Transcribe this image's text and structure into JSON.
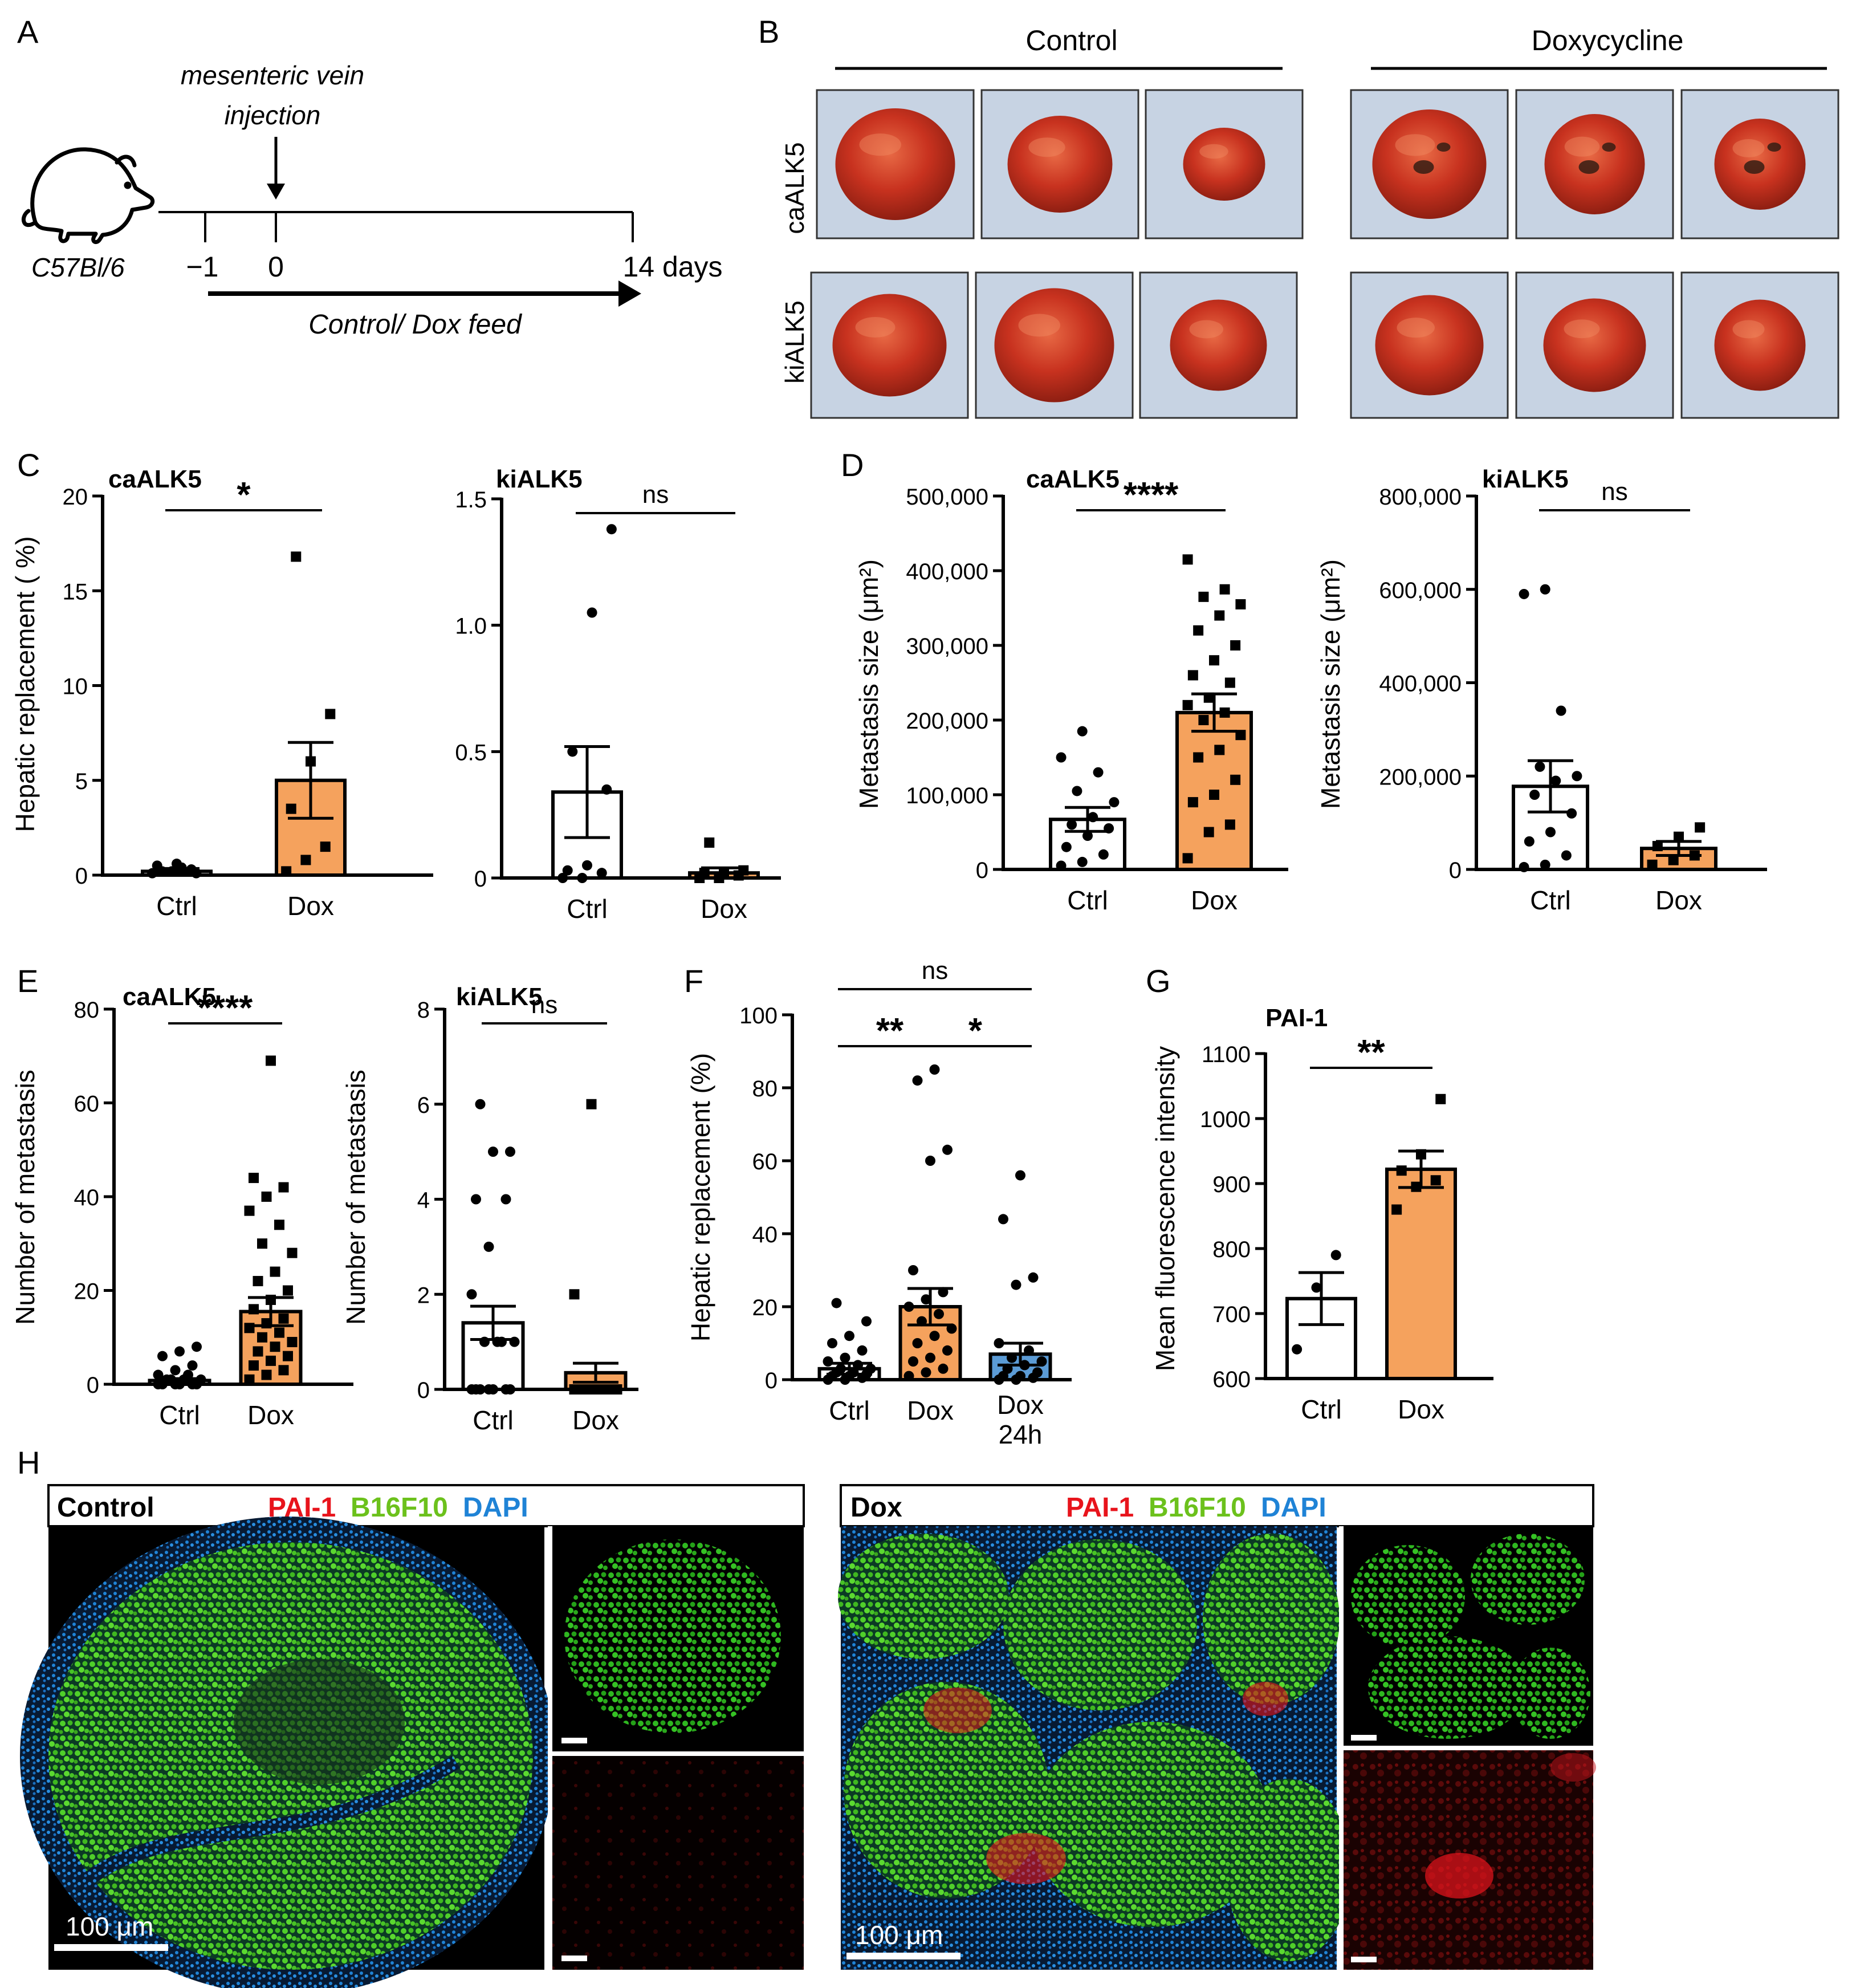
{
  "figure": {
    "panel_letters": [
      "A",
      "B",
      "C",
      "D",
      "E",
      "F",
      "G",
      "H"
    ],
    "colors": {
      "ctrl_bar": "#ffffff",
      "dox_bar": "#f5a25d",
      "dox24_bar": "#5b9bd5",
      "liver": "#c8321f",
      "liver_bg": "#c7d3e3",
      "pai1": "#e8141c",
      "b16f10": "#6cc11c",
      "dapi": "#1f83d6"
    }
  },
  "panel_a": {
    "injection_line1": "mesenteric vein",
    "injection_line2": "injection",
    "mouse_strain": "C57Bl/6",
    "timepoints": [
      "−1",
      "0",
      "14 days"
    ],
    "feed_label": "Control/ Dox feed",
    "icons": [
      "mouse-icon",
      "down-arrow-icon",
      "right-arrow-icon"
    ]
  },
  "panel_b": {
    "group_control": "Control",
    "group_dox": "Doxycycline",
    "row_labels": [
      "caALK5",
      "kiALK5"
    ]
  },
  "panel_h": {
    "control_title": "Control",
    "dox_title": "Dox",
    "stain_pai1": "PAI-1",
    "stain_b16": "B16F10",
    "stain_dapi": "DAPI",
    "scale_label": "100 μm"
  },
  "chart_data": [
    {
      "id": "C-caALK5",
      "panel": "C",
      "type": "bar",
      "title": "caALK5",
      "ylabel": "Hepatic replacement ( %)",
      "xlabel": "",
      "categories": [
        "Ctrl",
        "Dox"
      ],
      "ylim": [
        0,
        20
      ],
      "yticks": [
        "0",
        "5",
        "10",
        "15",
        "20"
      ],
      "means": [
        0.2,
        5.0
      ],
      "sem": [
        0.15,
        2.0
      ],
      "points": [
        [
          0.1,
          0.2,
          0.3,
          0.5,
          0.6,
          0.1,
          0.2,
          0.4
        ],
        [
          0.2,
          0.8,
          1.5,
          3.5,
          6.0,
          8.5,
          16.8
        ]
      ],
      "significance": [
        {
          "from": 0,
          "to": 1,
          "label": "*"
        }
      ]
    },
    {
      "id": "C-kiALK5",
      "panel": "C",
      "type": "bar",
      "title": "kiALK5",
      "ylabel": "",
      "xlabel": "",
      "categories": [
        "Ctrl",
        "Dox"
      ],
      "ylim": [
        0,
        1.5
      ],
      "yticks": [
        "0",
        "0.5",
        "1.0",
        "1.5"
      ],
      "means": [
        0.34,
        0.02
      ],
      "sem": [
        0.18,
        0.02
      ],
      "points": [
        [
          0.0,
          0.0,
          0.02,
          0.03,
          0.05,
          0.35,
          0.5,
          1.05,
          1.38
        ],
        [
          0.0,
          0.0,
          0.01,
          0.02,
          0.02,
          0.03,
          0.14
        ]
      ],
      "significance": [
        {
          "from": 0,
          "to": 1,
          "label": "ns"
        }
      ]
    },
    {
      "id": "D-caALK5",
      "panel": "D",
      "type": "bar",
      "title": "caALK5",
      "ylabel": "Metastasis size (μm²)",
      "xlabel": "",
      "categories": [
        "Ctrl",
        "Dox"
      ],
      "ylim": [
        0,
        500000
      ],
      "yticks": [
        "0",
        "100,000",
        "200,000",
        "300,000",
        "400,000",
        "500,000"
      ],
      "means": [
        67000,
        210000
      ],
      "sem": [
        16000,
        25000
      ],
      "points": [
        [
          5000,
          10000,
          20000,
          30000,
          45000,
          55000,
          60000,
          70000,
          90000,
          105000,
          130000,
          150000,
          185000
        ],
        [
          15000,
          50000,
          60000,
          90000,
          100000,
          120000,
          150000,
          160000,
          180000,
          200000,
          210000,
          220000,
          230000,
          250000,
          260000,
          280000,
          300000,
          320000,
          340000,
          355000,
          365000,
          375000,
          415000
        ]
      ],
      "significance": [
        {
          "from": 0,
          "to": 1,
          "label": "****"
        }
      ]
    },
    {
      "id": "D-kiALK5",
      "panel": "D",
      "type": "bar",
      "title": "kiALK5",
      "ylabel": "Metastasis size (μm²)",
      "xlabel": "",
      "categories": [
        "Ctrl",
        "Dox"
      ],
      "ylim": [
        0,
        800000
      ],
      "yticks": [
        "0",
        "200,000",
        "400,000",
        "600,000",
        "800,000"
      ],
      "means": [
        178000,
        45000
      ],
      "sem": [
        55000,
        15000
      ],
      "points": [
        [
          5000,
          10000,
          30000,
          60000,
          80000,
          120000,
          160000,
          190000,
          200000,
          220000,
          340000,
          590000,
          600000
        ],
        [
          10000,
          20000,
          30000,
          50000,
          70000,
          90000
        ]
      ],
      "significance": [
        {
          "from": 0,
          "to": 1,
          "label": "ns"
        }
      ]
    },
    {
      "id": "E-caALK5",
      "panel": "E",
      "type": "bar",
      "title": "caALK5",
      "ylabel": "Number of metastasis",
      "xlabel": "",
      "categories": [
        "Ctrl",
        "Dox"
      ],
      "ylim": [
        0,
        80
      ],
      "yticks": [
        "0",
        "20",
        "40",
        "60",
        "80"
      ],
      "means": [
        0.8,
        15.5
      ],
      "sem": [
        0.4,
        3.0
      ],
      "points": [
        [
          0,
          0,
          0,
          0,
          0,
          0,
          1,
          1,
          1,
          1,
          2,
          2,
          3,
          4,
          6,
          7,
          8
        ],
        [
          1,
          2,
          3,
          4,
          5,
          6,
          7,
          8,
          9,
          10,
          11,
          12,
          13,
          14,
          16,
          18,
          20,
          22,
          24,
          28,
          30,
          34,
          37,
          40,
          42,
          44,
          69
        ]
      ],
      "significance": [
        {
          "from": 0,
          "to": 1,
          "label": "****"
        }
      ]
    },
    {
      "id": "E-kiALK5",
      "panel": "E",
      "type": "bar",
      "title": "kiALK5",
      "ylabel": "Number of metastasis",
      "xlabel": "",
      "categories": [
        "Ctrl",
        "Dox"
      ],
      "ylim": [
        0,
        8
      ],
      "yticks": [
        "0",
        "2",
        "4",
        "6",
        "8"
      ],
      "means": [
        1.4,
        0.35
      ],
      "sem": [
        0.35,
        0.2
      ],
      "points": [
        [
          0,
          0,
          0,
          0,
          0,
          0,
          0,
          1,
          1,
          1,
          1,
          2,
          3,
          4,
          4,
          5,
          5,
          6
        ],
        [
          0,
          0,
          0,
          0,
          0,
          0,
          0,
          0,
          0,
          0,
          0,
          2,
          6
        ]
      ],
      "significance": [
        {
          "from": 0,
          "to": 1,
          "label": "ns"
        }
      ]
    },
    {
      "id": "F",
      "panel": "F",
      "type": "bar",
      "title": "",
      "ylabel": "Hepatic replacement (%)",
      "xlabel": "",
      "categories": [
        "Ctrl",
        "Dox",
        "Dox 24h"
      ],
      "ylim": [
        0,
        100
      ],
      "yticks": [
        "0",
        "20",
        "40",
        "60",
        "80",
        "100"
      ],
      "means": [
        3.0,
        20.0,
        7.0
      ],
      "sem": [
        1.5,
        5.0,
        3.0
      ],
      "points": [
        [
          0,
          0,
          0.5,
          1,
          1,
          1.5,
          2,
          2,
          3,
          3,
          4,
          5,
          6,
          8,
          10,
          12,
          16,
          21
        ],
        [
          1,
          2,
          3,
          5,
          6,
          8,
          10,
          12,
          14,
          16,
          18,
          20,
          22,
          24,
          30,
          60,
          63,
          82,
          85
        ],
        [
          0,
          0,
          0.5,
          1,
          1,
          2,
          3,
          4,
          5,
          6,
          8,
          10,
          26,
          28,
          44,
          56
        ]
      ],
      "significance": [
        {
          "from": 0,
          "to": 1,
          "label": "**"
        },
        {
          "from": 1,
          "to": 2,
          "label": "*"
        },
        {
          "from": 0,
          "to": 2,
          "label": "ns"
        }
      ]
    },
    {
      "id": "G",
      "panel": "G",
      "type": "bar",
      "title": "PAI-1",
      "ylabel": "Mean fluorescence intensity",
      "xlabel": "",
      "categories": [
        "Ctrl",
        "Dox"
      ],
      "ylim": [
        600,
        1100
      ],
      "yticks": [
        "600",
        "700",
        "800",
        "900",
        "1000",
        "1100"
      ],
      "means": [
        723,
        922
      ],
      "sem": [
        40,
        28
      ],
      "points": [
        [
          645,
          740,
          790
        ],
        [
          860,
          895,
          905,
          920,
          945,
          1030
        ]
      ],
      "significance": [
        {
          "from": 0,
          "to": 1,
          "label": "**"
        }
      ]
    }
  ]
}
